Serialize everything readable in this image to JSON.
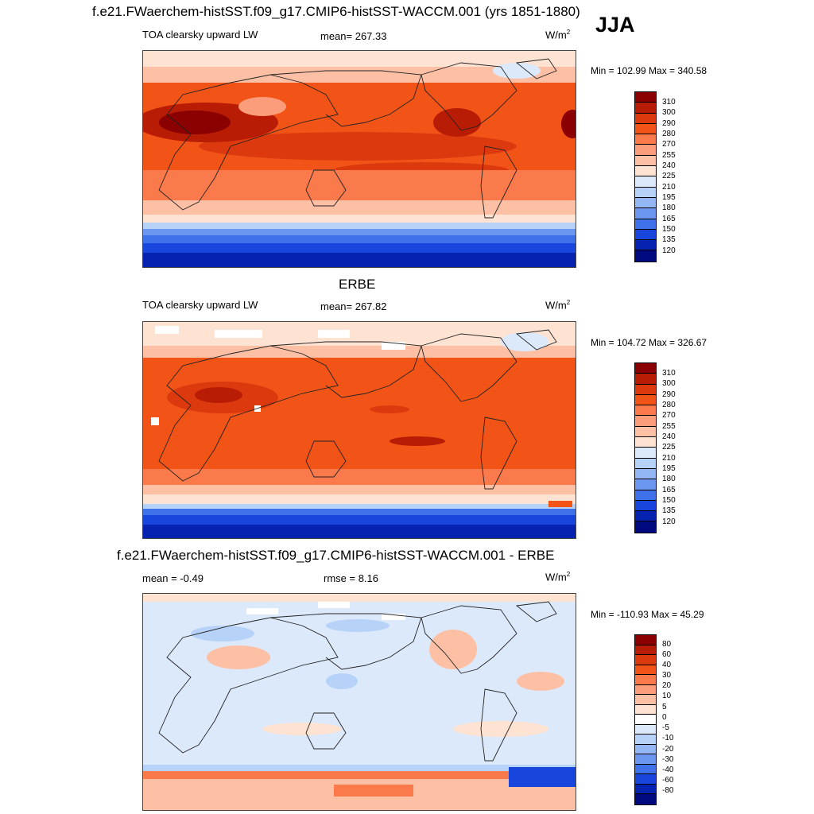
{
  "season": "JJA",
  "panels": [
    {
      "title": "f.e21.FWaerchem-histSST.f09_g17.CMIP6-histSST-WACCM.001 (yrs 1851-1880)",
      "left": "TOA clearsky upward LW",
      "center": "mean= 267.33",
      "units": "W/m",
      "units_sup": "2",
      "minmax": "Min = 102.99 Max = 340.58",
      "colorbar": {
        "colors": [
          "#8b0000",
          "#b81c04",
          "#dc3a0e",
          "#f25418",
          "#fa7a4c",
          "#fb9d7a",
          "#fdc0a5",
          "#fee2d2",
          "#dce9fb",
          "#b7d2f8",
          "#93b6f4",
          "#6b97f0",
          "#3f71ea",
          "#1846dc",
          "#0522b0",
          "#00097d"
        ],
        "labels": [
          "310",
          "300",
          "290",
          "280",
          "270",
          "255",
          "240",
          "225",
          "210",
          "195",
          "180",
          "165",
          "150",
          "135",
          "120"
        ]
      }
    },
    {
      "title": "ERBE",
      "left": "TOA clearsky upward LW",
      "center": "mean= 267.82",
      "units": "W/m",
      "units_sup": "2",
      "minmax": "Min = 104.72 Max = 326.67",
      "colorbar": {
        "colors": [
          "#8b0000",
          "#b81c04",
          "#dc3a0e",
          "#f25418",
          "#fa7a4c",
          "#fb9d7a",
          "#fdc0a5",
          "#fee2d2",
          "#dce9fb",
          "#b7d2f8",
          "#93b6f4",
          "#6b97f0",
          "#3f71ea",
          "#1846dc",
          "#0522b0",
          "#00097d"
        ],
        "labels": [
          "310",
          "300",
          "290",
          "280",
          "270",
          "255",
          "240",
          "225",
          "210",
          "195",
          "180",
          "165",
          "150",
          "135",
          "120"
        ]
      }
    },
    {
      "title": "f.e21.FWaerchem-histSST.f09_g17.CMIP6-histSST-WACCM.001 - ERBE",
      "left": "mean = -0.49",
      "center": "rmse = 8.16",
      "units": "W/m",
      "units_sup": "2",
      "minmax": "Min = -110.93 Max = 45.29",
      "colorbar": {
        "colors": [
          "#8b0000",
          "#b81c04",
          "#dc3a0e",
          "#f25418",
          "#fa7a4c",
          "#fb9d7a",
          "#fdc0a5",
          "#fee2d2",
          "#ffffff",
          "#dce9fb",
          "#b7d2f8",
          "#93b6f4",
          "#6b97f0",
          "#3f71ea",
          "#1846dc",
          "#0522b0",
          "#00097d"
        ],
        "labels": [
          "80",
          "60",
          "40",
          "30",
          "20",
          "10",
          "5",
          "0",
          "-5",
          "-10",
          "-20",
          "-30",
          "-40",
          "-60",
          "-80"
        ]
      }
    }
  ]
}
